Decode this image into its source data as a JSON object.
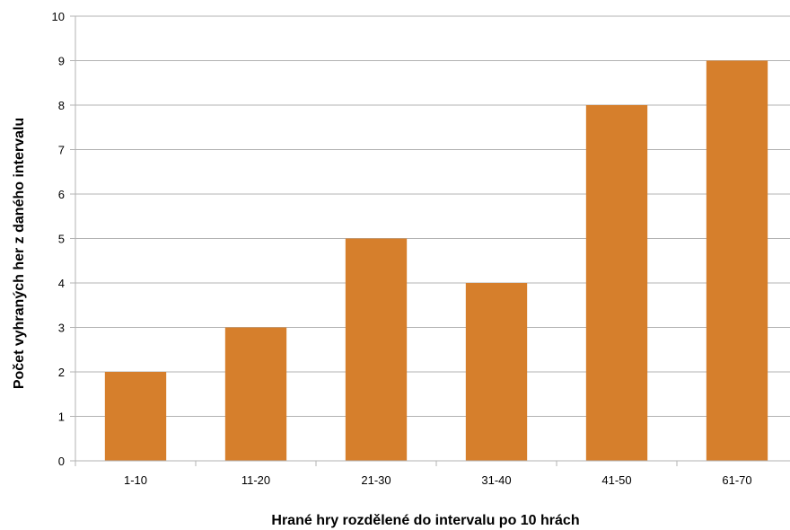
{
  "chart_data": {
    "type": "bar",
    "categories": [
      "1-10",
      "11-20",
      "21-30",
      "31-40",
      "41-50",
      "61-70"
    ],
    "values": [
      2,
      3,
      5,
      4,
      8,
      9
    ],
    "xlabel": "Hrané hry rozdělené do intervalu po 10 hrách",
    "ylabel": "Počet vyhraných her z daného intervalu",
    "ylim": [
      0,
      10
    ],
    "yticks": [
      0,
      1,
      2,
      3,
      4,
      5,
      6,
      7,
      8,
      9,
      10
    ],
    "grid": true,
    "bar_color": "#d67f2c",
    "legend": "none"
  }
}
